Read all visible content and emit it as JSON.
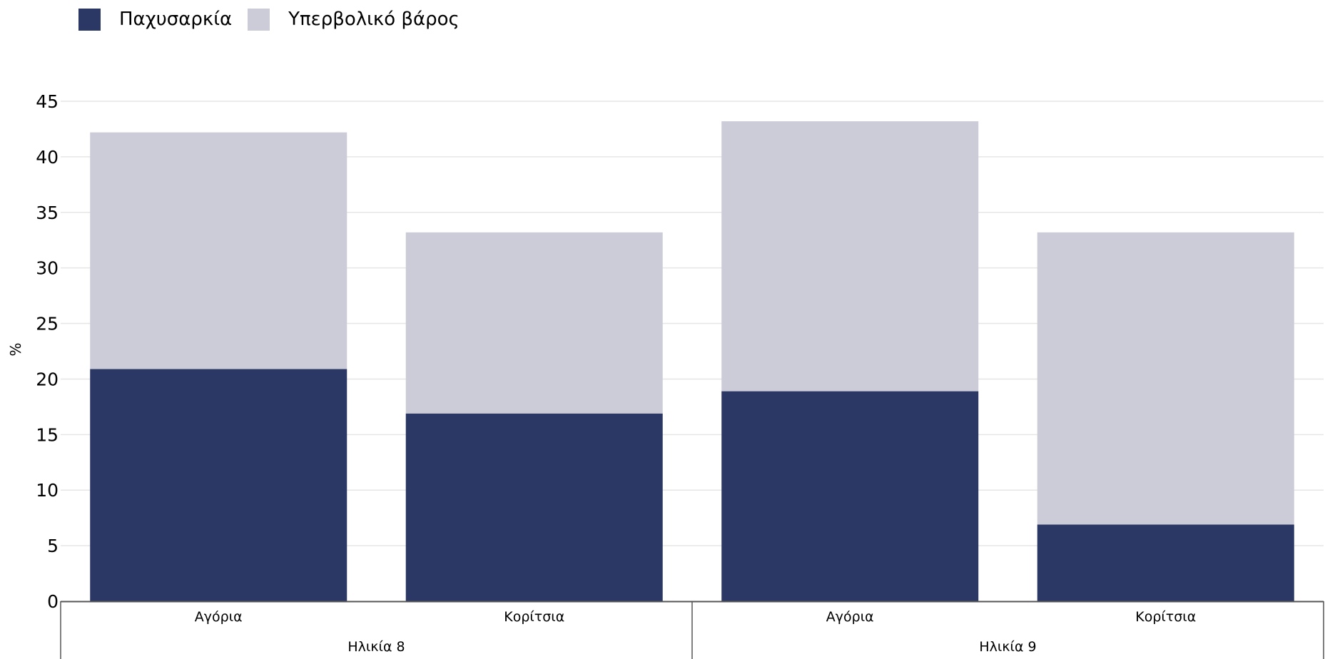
{
  "chart_data": {
    "type": "bar",
    "stacked": true,
    "categories": [
      "Αγόρια",
      "Κορίτσια",
      "Αγόρια",
      "Κορίτσια"
    ],
    "groups": [
      {
        "label": "Ηλικία 8",
        "categories": [
          "Αγόρια",
          "Κορίτσια"
        ]
      },
      {
        "label": "Ηλικία 9",
        "categories": [
          "Αγόρια",
          "Κορίτσια"
        ]
      }
    ],
    "series": [
      {
        "name": "Παχυσαρκία",
        "color": "#2b3764",
        "values": [
          20.9,
          16.9,
          18.9,
          6.9
        ]
      },
      {
        "name": "Υπερβολικό βάρος",
        "color": "#cbccd8",
        "values": [
          21.3,
          16.3,
          24.3,
          26.3
        ]
      }
    ],
    "ylabel": "%",
    "xlabel": "",
    "ylim": [
      0,
      45
    ],
    "yticks": [
      0,
      5,
      10,
      15,
      20,
      25,
      30,
      35,
      40,
      45
    ],
    "grid": true,
    "legend_position": "top-left"
  }
}
